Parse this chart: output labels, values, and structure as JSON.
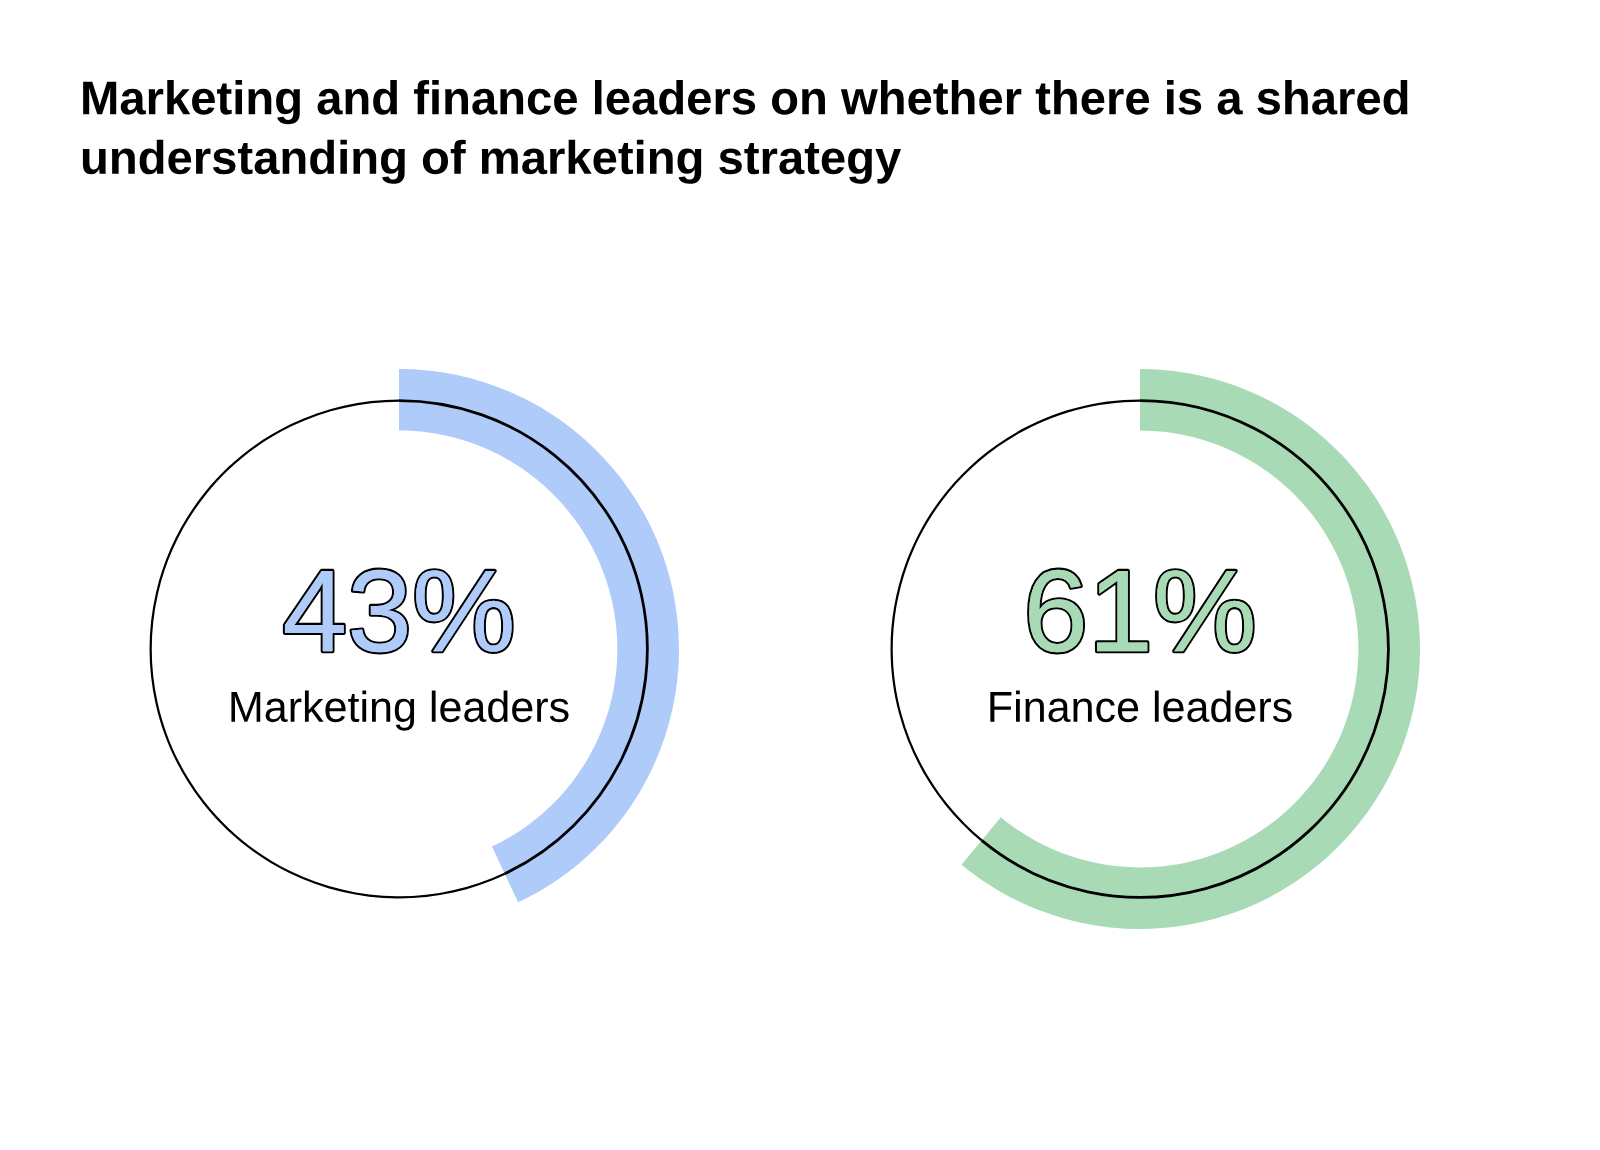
{
  "chart_data": [
    {
      "type": "donut",
      "title": "Marketing and finance leaders on whether there is a shared understanding of marketing strategy",
      "categories": [
        "Marketing leaders",
        null
      ],
      "values": [
        43,
        57
      ],
      "colors": [
        "#aecbfa",
        "#000000"
      ],
      "value_labels": [
        "43%",
        null
      ]
    },
    {
      "type": "donut",
      "categories": [
        "Finance leaders",
        null
      ],
      "values": [
        61,
        39
      ],
      "colors": [
        "#a8dab5",
        "#000000"
      ],
      "value_labels": [
        "61%",
        null
      ]
    }
  ]
}
